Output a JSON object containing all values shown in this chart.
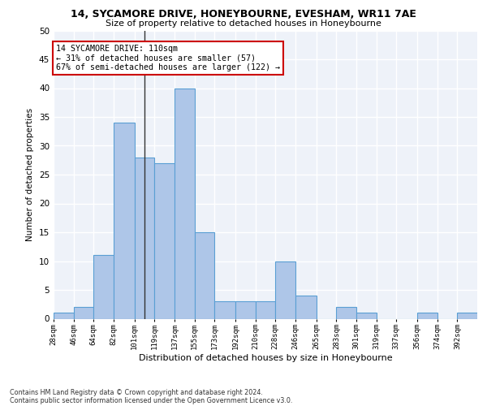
{
  "title_line1": "14, SYCAMORE DRIVE, HONEYBOURNE, EVESHAM, WR11 7AE",
  "title_line2": "Size of property relative to detached houses in Honeybourne",
  "xlabel": "Distribution of detached houses by size in Honeybourne",
  "ylabel": "Number of detached properties",
  "footnote1": "Contains HM Land Registry data © Crown copyright and database right 2024.",
  "footnote2": "Contains public sector information licensed under the Open Government Licence v3.0.",
  "annotation_title": "14 SYCAMORE DRIVE: 110sqm",
  "annotation_line2": "← 31% of detached houses are smaller (57)",
  "annotation_line3": "67% of semi-detached houses are larger (122) →",
  "bin_labels": [
    "28sqm",
    "46sqm",
    "64sqm",
    "82sqm",
    "101sqm",
    "119sqm",
    "137sqm",
    "155sqm",
    "173sqm",
    "192sqm",
    "210sqm",
    "228sqm",
    "246sqm",
    "265sqm",
    "283sqm",
    "301sqm",
    "319sqm",
    "337sqm",
    "356sqm",
    "374sqm",
    "392sqm"
  ],
  "bin_edges": [
    28,
    46,
    64,
    82,
    101,
    119,
    137,
    155,
    173,
    192,
    210,
    228,
    246,
    265,
    283,
    301,
    319,
    337,
    356,
    374,
    392
  ],
  "bar_heights": [
    1,
    2,
    11,
    34,
    28,
    27,
    40,
    15,
    3,
    3,
    3,
    10,
    4,
    0,
    2,
    1,
    0,
    0,
    1,
    0,
    1
  ],
  "bar_color": "#aec6e8",
  "bar_edge_color": "#5a9fd4",
  "property_size": 110,
  "ylim": [
    0,
    50
  ],
  "background_color": "#eef2f9",
  "fig_background_color": "#ffffff",
  "grid_color": "#ffffff",
  "annotation_box_color": "#ffffff",
  "annotation_box_edge": "#cc0000"
}
